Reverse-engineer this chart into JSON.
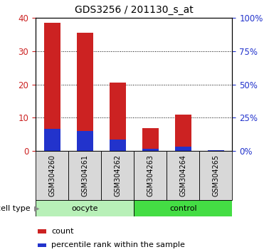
{
  "title": "GDS3256 / 201130_s_at",
  "samples": [
    "GSM304260",
    "GSM304261",
    "GSM304262",
    "GSM304263",
    "GSM304264",
    "GSM304265"
  ],
  "count_values": [
    38.5,
    35.5,
    20.5,
    7.0,
    11.0,
    0.2
  ],
  "percentile_values": [
    17.0,
    15.2,
    9.0,
    2.0,
    3.2,
    0.5
  ],
  "n_oocyte": 3,
  "n_control": 3,
  "oocyte_color": "#b8f0b8",
  "control_color": "#44dd44",
  "sample_box_color": "#d8d8d8",
  "bar_color_red": "#cc2222",
  "bar_color_blue": "#2233cc",
  "left_ylim": [
    0,
    40
  ],
  "right_ylim": [
    0,
    100
  ],
  "left_yticks": [
    0,
    10,
    20,
    30,
    40
  ],
  "right_yticks": [
    0,
    25,
    50,
    75,
    100
  ],
  "right_yticklabels": [
    "0%",
    "25%",
    "50%",
    "75%",
    "100%"
  ],
  "left_tick_color": "#cc2222",
  "right_tick_color": "#2233cc",
  "legend_count_label": "count",
  "legend_percentile_label": "percentile rank within the sample",
  "cell_type_label": "cell type",
  "bar_width": 0.5,
  "figsize": [
    3.71,
    3.54
  ],
  "dpi": 100
}
